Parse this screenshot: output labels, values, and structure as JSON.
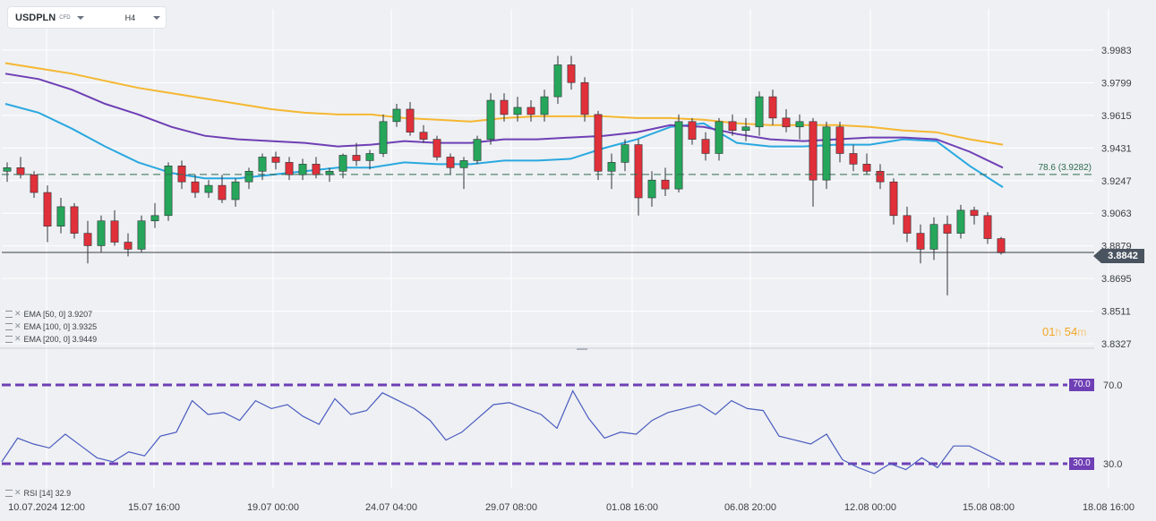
{
  "toolbar": {
    "symbol": "USDPLN",
    "symbol_type": "CFD",
    "timeframe": "H4"
  },
  "indicators": [
    {
      "label": "EMA [50, 0] 3.9207",
      "color": "#29a8e0"
    },
    {
      "label": "EMA [100, 0] 3.9325",
      "color": "#6f3fb5"
    },
    {
      "label": "EMA [200, 0] 3.9449",
      "color": "#f5b731"
    }
  ],
  "rsi_label": "RSI [14] 32.9",
  "current_price": "3.8842",
  "fib_label": "78.6 (3.9282)",
  "countdown": {
    "hours": "01",
    "h": "h",
    "minutes": "54",
    "m": "m"
  },
  "colors": {
    "up": "#26a65b",
    "down": "#e0303a",
    "ema50": "#29a8e0",
    "ema100": "#6f3fb5",
    "ema200": "#f5b731",
    "rsi": "#4a5bbf",
    "rsi_levels": "#6f3fb5"
  },
  "chart_data": [
    {
      "type": "candlestick",
      "symbol": "USDPLN",
      "timeframe": "H4",
      "y_ticks": [
        "3.9983",
        "3.9799",
        "3.9615",
        "3.9431",
        "3.9247",
        "3.9063",
        "3.8879",
        "3.8695",
        "3.8511",
        "3.8327"
      ],
      "ylim": [
        3.8327,
        3.9983
      ],
      "x_ticks": [
        "10.07.2024 12:00",
        "15.07 16:00",
        "19.07 00:00",
        "24.07 04:00",
        "29.07 08:00",
        "01.08 16:00",
        "06.08 20:00",
        "12.08 00:00",
        "15.08 08:00",
        "18.08 16:00"
      ],
      "current_price": 3.8842,
      "fib_level": {
        "label": "78.6 (3.9282)",
        "value": 3.9282
      },
      "series": [
        {
          "name": "EMA [50, 0]",
          "last": 3.9207,
          "values": [
            3.968,
            3.963,
            3.954,
            3.944,
            3.935,
            3.929,
            3.926,
            3.926,
            3.928,
            3.93,
            3.932,
            3.932,
            3.935,
            3.934,
            3.934,
            3.936,
            3.936,
            3.937,
            3.943,
            3.948,
            3.955,
            3.957,
            3.946,
            3.944,
            3.944,
            3.945,
            3.945,
            3.948,
            3.947,
            3.933,
            3.921
          ]
        },
        {
          "name": "EMA [100, 0]",
          "last": 3.9325,
          "values": [
            3.985,
            3.982,
            3.976,
            3.968,
            3.962,
            3.955,
            3.95,
            3.948,
            3.947,
            3.946,
            3.944,
            3.945,
            3.947,
            3.946,
            3.946,
            3.948,
            3.948,
            3.949,
            3.95,
            3.952,
            3.956,
            3.955,
            3.951,
            3.948,
            3.947,
            3.948,
            3.949,
            3.949,
            3.948,
            3.941,
            3.932
          ]
        },
        {
          "name": "EMA [200, 0]",
          "last": 3.9449,
          "values": [
            3.991,
            3.988,
            3.985,
            3.981,
            3.977,
            3.974,
            3.971,
            3.968,
            3.965,
            3.963,
            3.962,
            3.962,
            3.96,
            3.959,
            3.958,
            3.96,
            3.961,
            3.961,
            3.961,
            3.96,
            3.96,
            3.959,
            3.957,
            3.956,
            3.956,
            3.956,
            3.955,
            3.953,
            3.952,
            3.948,
            3.945
          ]
        }
      ],
      "candles": [
        [
          3.93,
          3.935,
          3.924,
          3.932
        ],
        [
          3.932,
          3.938,
          3.926,
          3.928
        ],
        [
          3.928,
          3.93,
          3.915,
          3.918
        ],
        [
          3.918,
          3.922,
          3.89,
          3.899
        ],
        [
          3.899,
          3.915,
          3.895,
          3.91
        ],
        [
          3.91,
          3.912,
          3.892,
          3.895
        ],
        [
          3.895,
          3.902,
          3.878,
          3.888
        ],
        [
          3.888,
          3.905,
          3.884,
          3.902
        ],
        [
          3.902,
          3.908,
          3.888,
          3.89
        ],
        [
          3.89,
          3.895,
          3.882,
          3.886
        ],
        [
          3.886,
          3.905,
          3.884,
          3.902
        ],
        [
          3.902,
          3.912,
          3.898,
          3.905
        ],
        [
          3.905,
          3.935,
          3.902,
          3.933
        ],
        [
          3.933,
          3.936,
          3.92,
          3.924
        ],
        [
          3.924,
          3.928,
          3.915,
          3.918
        ],
        [
          3.918,
          3.925,
          3.915,
          3.922
        ],
        [
          3.922,
          3.928,
          3.912,
          3.914
        ],
        [
          3.914,
          3.926,
          3.91,
          3.924
        ],
        [
          3.924,
          3.932,
          3.92,
          3.93
        ],
        [
          3.93,
          3.94,
          3.925,
          3.938
        ],
        [
          3.938,
          3.941,
          3.931,
          3.935
        ],
        [
          3.935,
          3.938,
          3.925,
          3.928
        ],
        [
          3.928,
          3.937,
          3.925,
          3.934
        ],
        [
          3.934,
          3.938,
          3.926,
          3.928
        ],
        [
          3.928,
          3.932,
          3.924,
          3.93
        ],
        [
          3.93,
          3.94,
          3.926,
          3.939
        ],
        [
          3.939,
          3.946,
          3.933,
          3.936
        ],
        [
          3.936,
          3.942,
          3.931,
          3.94
        ],
        [
          3.94,
          3.962,
          3.938,
          3.958
        ],
        [
          3.958,
          3.968,
          3.955,
          3.965
        ],
        [
          3.965,
          3.969,
          3.95,
          3.952
        ],
        [
          3.952,
          3.956,
          3.946,
          3.948
        ],
        [
          3.948,
          3.95,
          3.936,
          3.938
        ],
        [
          3.938,
          3.94,
          3.928,
          3.932
        ],
        [
          3.932,
          3.938,
          3.92,
          3.936
        ],
        [
          3.936,
          3.95,
          3.934,
          3.948
        ],
        [
          3.948,
          3.974,
          3.945,
          3.97
        ],
        [
          3.97,
          3.974,
          3.958,
          3.962
        ],
        [
          3.962,
          3.972,
          3.958,
          3.966
        ],
        [
          3.966,
          3.97,
          3.958,
          3.962
        ],
        [
          3.962,
          3.976,
          3.958,
          3.972
        ],
        [
          3.972,
          3.995,
          3.968,
          3.99
        ],
        [
          3.99,
          3.995,
          3.976,
          3.98
        ],
        [
          3.98,
          3.983,
          3.958,
          3.962
        ],
        [
          3.962,
          3.964,
          3.925,
          3.93
        ],
        [
          3.93,
          3.94,
          3.92,
          3.935
        ],
        [
          3.935,
          3.948,
          3.93,
          3.945
        ],
        [
          3.945,
          3.948,
          3.905,
          3.915
        ],
        [
          3.915,
          3.93,
          3.91,
          3.925
        ],
        [
          3.925,
          3.932,
          3.916,
          3.92
        ],
        [
          3.92,
          3.962,
          3.918,
          3.958
        ],
        [
          3.958,
          3.96,
          3.945,
          3.948
        ],
        [
          3.948,
          3.952,
          3.936,
          3.94
        ],
        [
          3.94,
          3.96,
          3.936,
          3.958
        ],
        [
          3.958,
          3.962,
          3.95,
          3.953
        ],
        [
          3.953,
          3.96,
          3.947,
          3.955
        ],
        [
          3.955,
          3.975,
          3.95,
          3.972
        ],
        [
          3.972,
          3.976,
          3.956,
          3.96
        ],
        [
          3.96,
          3.965,
          3.952,
          3.955
        ],
        [
          3.955,
          3.962,
          3.948,
          3.958
        ],
        [
          3.958,
          3.96,
          3.91,
          3.925
        ],
        [
          3.925,
          3.958,
          3.92,
          3.955
        ],
        [
          3.955,
          3.958,
          3.935,
          3.94
        ],
        [
          3.94,
          3.945,
          3.93,
          3.934
        ],
        [
          3.934,
          3.94,
          3.928,
          3.93
        ],
        [
          3.93,
          3.934,
          3.92,
          3.924
        ],
        [
          3.924,
          3.926,
          3.9,
          3.905
        ],
        [
          3.905,
          3.91,
          3.89,
          3.895
        ],
        [
          3.895,
          3.9,
          3.878,
          3.886
        ],
        [
          3.886,
          3.904,
          3.88,
          3.9
        ],
        [
          3.9,
          3.905,
          3.86,
          3.895
        ],
        [
          3.895,
          3.911,
          3.892,
          3.908
        ],
        [
          3.908,
          3.91,
          3.9,
          3.905
        ],
        [
          3.905,
          3.907,
          3.889,
          3.892
        ],
        [
          3.892,
          3.893,
          3.883,
          3.884
        ]
      ]
    },
    {
      "type": "line",
      "name": "RSI [14]",
      "last": 32.9,
      "levels": [
        {
          "label": "70.0",
          "value": 70
        },
        {
          "label": "30.0",
          "value": 30
        }
      ],
      "y_ticks": [
        "70.0",
        "30.0"
      ],
      "values": [
        31,
        43,
        40,
        38,
        45,
        39,
        33,
        31,
        36,
        34,
        44,
        46,
        62,
        55,
        56,
        52,
        62,
        58,
        60,
        54,
        50,
        63,
        55,
        57,
        66,
        62,
        58,
        52,
        42,
        46,
        53,
        60,
        61,
        58,
        55,
        48,
        67,
        53,
        43,
        46,
        45,
        52,
        56,
        58,
        60,
        55,
        62,
        58,
        57,
        44,
        42,
        40,
        45,
        32,
        28,
        25,
        30,
        27,
        33,
        28,
        39,
        39,
        35,
        31
      ]
    }
  ]
}
